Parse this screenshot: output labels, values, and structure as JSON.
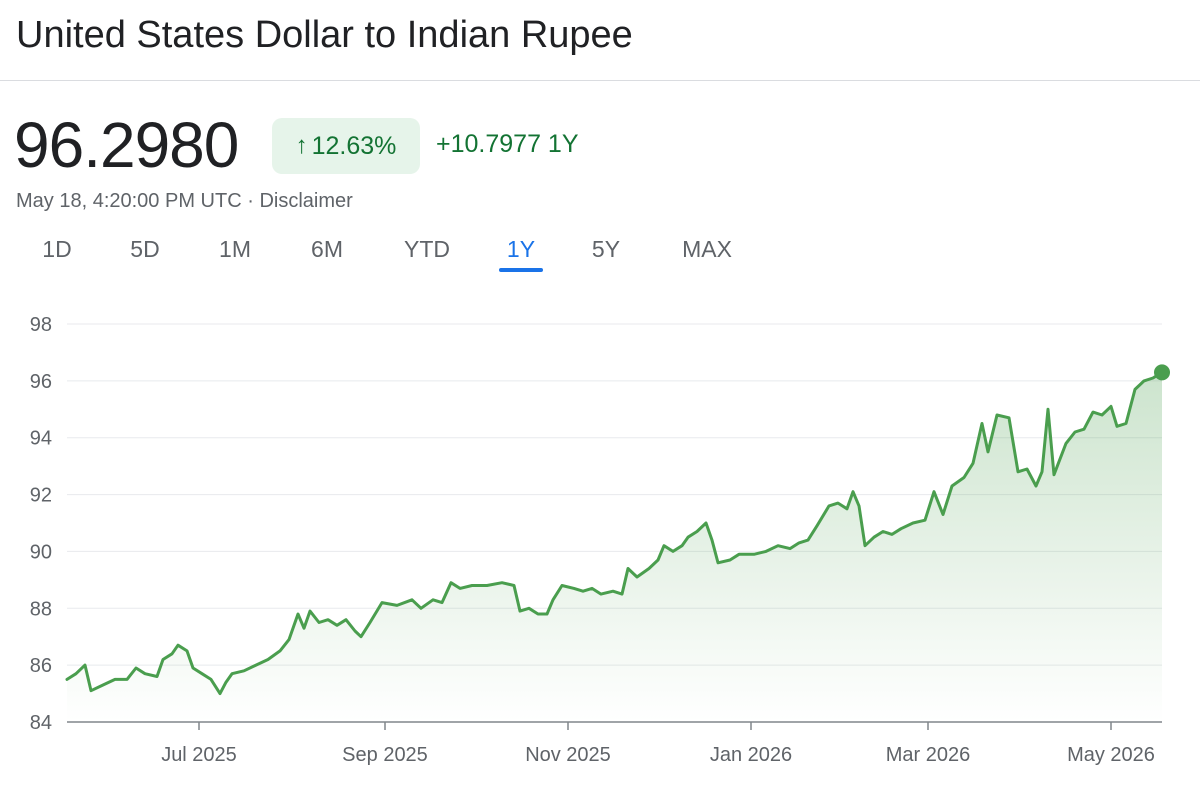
{
  "header": {
    "title": "United States Dollar to Indian Rupee"
  },
  "quote": {
    "price": "96.2980",
    "percent_change": "12.63%",
    "abs_change": "+10.7977 1Y",
    "timestamp": "May 18, 4:20:00 PM UTC",
    "separator": "·",
    "disclaimer": "Disclaimer"
  },
  "tabs": [
    {
      "label": "1D",
      "active": false
    },
    {
      "label": "5D",
      "active": false
    },
    {
      "label": "1M",
      "active": false
    },
    {
      "label": "6M",
      "active": false
    },
    {
      "label": "YTD",
      "active": false
    },
    {
      "label": "1Y",
      "active": true
    },
    {
      "label": "5Y",
      "active": false
    },
    {
      "label": "MAX",
      "active": false
    }
  ],
  "colors": {
    "line": "#4a9e4e",
    "accent": "#1a73e8",
    "up": "#137333",
    "badge_bg": "#e6f4ea"
  },
  "chart_data": {
    "type": "line",
    "title": "",
    "xlabel": "",
    "ylabel": "",
    "ylim": [
      84,
      98
    ],
    "yticks": [
      84,
      86,
      88,
      90,
      92,
      94,
      96,
      98
    ],
    "xlim": [
      "2025-05-18",
      "2026-05-18"
    ],
    "xticks": [
      {
        "label": "Jul 2025",
        "date": "2025-07-01"
      },
      {
        "label": "Sep 2025",
        "date": "2025-09-01"
      },
      {
        "label": "Nov 2025",
        "date": "2025-11-01"
      },
      {
        "label": "Jan 2026",
        "date": "2026-01-01"
      },
      {
        "label": "Mar 2026",
        "date": "2026-03-01"
      },
      {
        "label": "May 2026",
        "date": "2026-05-01"
      }
    ],
    "grid": true,
    "series": [
      {
        "name": "",
        "points": [
          [
            "2025-05-18",
            85.5
          ],
          [
            "2025-05-21",
            85.7
          ],
          [
            "2025-05-24",
            86.0
          ],
          [
            "2025-05-26",
            85.1
          ],
          [
            "2025-05-30",
            85.3
          ],
          [
            "2025-06-03",
            85.5
          ],
          [
            "2025-06-07",
            85.5
          ],
          [
            "2025-06-10",
            85.9
          ],
          [
            "2025-06-13",
            85.7
          ],
          [
            "2025-06-17",
            85.6
          ],
          [
            "2025-06-19",
            86.2
          ],
          [
            "2025-06-22",
            86.4
          ],
          [
            "2025-06-24",
            86.7
          ],
          [
            "2025-06-27",
            86.5
          ],
          [
            "2025-06-29",
            85.9
          ],
          [
            "2025-07-02",
            85.7
          ],
          [
            "2025-07-05",
            85.5
          ],
          [
            "2025-07-08",
            85.0
          ],
          [
            "2025-07-10",
            85.4
          ],
          [
            "2025-07-12",
            85.7
          ],
          [
            "2025-07-16",
            85.8
          ],
          [
            "2025-07-20",
            86.0
          ],
          [
            "2025-07-24",
            86.2
          ],
          [
            "2025-07-28",
            86.5
          ],
          [
            "2025-07-31",
            86.9
          ],
          [
            "2025-08-03",
            87.8
          ],
          [
            "2025-08-05",
            87.3
          ],
          [
            "2025-08-07",
            87.9
          ],
          [
            "2025-08-10",
            87.5
          ],
          [
            "2025-08-13",
            87.6
          ],
          [
            "2025-08-16",
            87.4
          ],
          [
            "2025-08-19",
            87.6
          ],
          [
            "2025-08-22",
            87.2
          ],
          [
            "2025-08-24",
            87.0
          ],
          [
            "2025-08-27",
            87.5
          ],
          [
            "2025-08-31",
            88.2
          ],
          [
            "2025-09-05",
            88.1
          ],
          [
            "2025-09-10",
            88.3
          ],
          [
            "2025-09-13",
            88.0
          ],
          [
            "2025-09-17",
            88.3
          ],
          [
            "2025-09-20",
            88.2
          ],
          [
            "2025-09-23",
            88.9
          ],
          [
            "2025-09-26",
            88.7
          ],
          [
            "2025-09-30",
            88.8
          ],
          [
            "2025-10-05",
            88.8
          ],
          [
            "2025-10-10",
            88.9
          ],
          [
            "2025-10-14",
            88.8
          ],
          [
            "2025-10-16",
            87.9
          ],
          [
            "2025-10-19",
            88.0
          ],
          [
            "2025-10-22",
            87.8
          ],
          [
            "2025-10-25",
            87.8
          ],
          [
            "2025-10-27",
            88.3
          ],
          [
            "2025-10-30",
            88.8
          ],
          [
            "2025-11-03",
            88.7
          ],
          [
            "2025-11-06",
            88.6
          ],
          [
            "2025-11-09",
            88.7
          ],
          [
            "2025-11-12",
            88.5
          ],
          [
            "2025-11-16",
            88.6
          ],
          [
            "2025-11-19",
            88.5
          ],
          [
            "2025-11-21",
            89.4
          ],
          [
            "2025-11-24",
            89.1
          ],
          [
            "2025-11-28",
            89.4
          ],
          [
            "2025-12-01",
            89.7
          ],
          [
            "2025-12-03",
            90.2
          ],
          [
            "2025-12-06",
            90.0
          ],
          [
            "2025-12-09",
            90.2
          ],
          [
            "2025-12-11",
            90.5
          ],
          [
            "2025-12-14",
            90.7
          ],
          [
            "2025-12-17",
            91.0
          ],
          [
            "2025-12-19",
            90.4
          ],
          [
            "2025-12-21",
            89.6
          ],
          [
            "2025-12-25",
            89.7
          ],
          [
            "2025-12-28",
            89.9
          ],
          [
            "2026-01-02",
            89.9
          ],
          [
            "2026-01-06",
            90.0
          ],
          [
            "2026-01-10",
            90.2
          ],
          [
            "2026-01-14",
            90.1
          ],
          [
            "2026-01-17",
            90.3
          ],
          [
            "2026-01-20",
            90.4
          ],
          [
            "2026-01-23",
            90.9
          ],
          [
            "2026-01-27",
            91.6
          ],
          [
            "2026-01-30",
            91.7
          ],
          [
            "2026-02-02",
            91.5
          ],
          [
            "2026-02-04",
            92.1
          ],
          [
            "2026-02-06",
            91.6
          ],
          [
            "2026-02-08",
            90.2
          ],
          [
            "2026-02-11",
            90.5
          ],
          [
            "2026-02-14",
            90.7
          ],
          [
            "2026-02-17",
            90.6
          ],
          [
            "2026-02-20",
            90.8
          ],
          [
            "2026-02-24",
            91.0
          ],
          [
            "2026-02-28",
            91.1
          ],
          [
            "2026-03-03",
            92.1
          ],
          [
            "2026-03-06",
            91.3
          ],
          [
            "2026-03-09",
            92.3
          ],
          [
            "2026-03-13",
            92.6
          ],
          [
            "2026-03-16",
            93.1
          ],
          [
            "2026-03-19",
            94.5
          ],
          [
            "2026-03-21",
            93.5
          ],
          [
            "2026-03-24",
            94.8
          ],
          [
            "2026-03-28",
            94.7
          ],
          [
            "2026-03-31",
            92.8
          ],
          [
            "2026-04-03",
            92.9
          ],
          [
            "2026-04-06",
            92.3
          ],
          [
            "2026-04-08",
            92.8
          ],
          [
            "2026-04-10",
            95.0
          ],
          [
            "2026-04-12",
            92.7
          ],
          [
            "2026-04-16",
            93.8
          ],
          [
            "2026-04-19",
            94.2
          ],
          [
            "2026-04-22",
            94.3
          ],
          [
            "2026-04-25",
            94.9
          ],
          [
            "2026-04-28",
            94.8
          ],
          [
            "2026-05-01",
            95.1
          ],
          [
            "2026-05-03",
            94.4
          ],
          [
            "2026-05-06",
            94.5
          ],
          [
            "2026-05-09",
            95.7
          ],
          [
            "2026-05-12",
            96.0
          ],
          [
            "2026-05-15",
            96.1
          ],
          [
            "2026-05-18",
            96.298
          ]
        ]
      }
    ]
  }
}
